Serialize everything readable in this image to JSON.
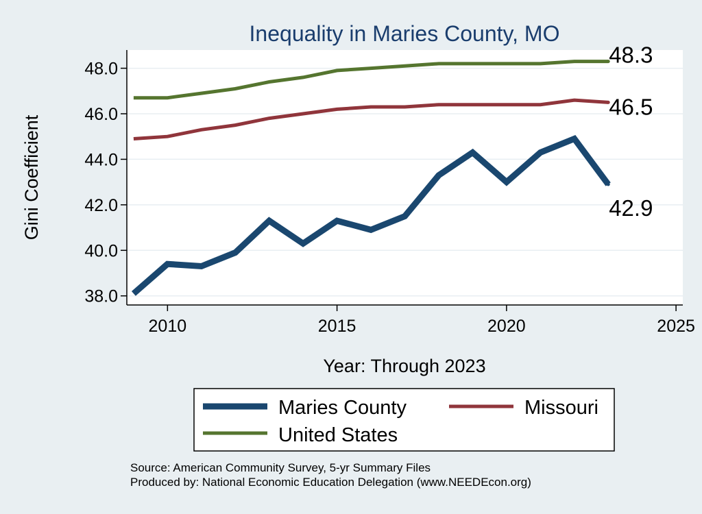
{
  "chart_data": {
    "type": "line",
    "title": "Inequality in Maries County, MO",
    "xlabel": "Year: Through 2023",
    "ylabel": "Gini Coefficient",
    "xlim": [
      2008.8,
      2025.2
    ],
    "ylim": [
      37.6,
      48.8
    ],
    "x_ticks": [
      2010,
      2015,
      2020,
      2025
    ],
    "y_ticks": [
      38,
      40,
      42,
      44,
      46,
      48
    ],
    "y_tick_labels": [
      "38.0",
      "40.0",
      "42.0",
      "44.0",
      "46.0",
      "48.0"
    ],
    "x": [
      2009,
      2010,
      2011,
      2012,
      2013,
      2014,
      2015,
      2016,
      2017,
      2018,
      2019,
      2020,
      2021,
      2022,
      2023
    ],
    "series": [
      {
        "name": "Maries County",
        "color": "#1a476f",
        "values": [
          38.1,
          39.4,
          39.3,
          39.9,
          41.3,
          40.3,
          41.3,
          40.9,
          41.5,
          43.3,
          44.3,
          43.0,
          44.3,
          44.9,
          42.9
        ],
        "end_label": "42.9"
      },
      {
        "name": "Missouri",
        "color": "#90353b",
        "values": [
          44.9,
          45.0,
          45.3,
          45.5,
          45.8,
          46.0,
          46.2,
          46.3,
          46.3,
          46.4,
          46.4,
          46.4,
          46.4,
          46.6,
          46.5
        ],
        "end_label": "46.5"
      },
      {
        "name": "United States",
        "color": "#55752f",
        "values": [
          46.7,
          46.7,
          46.9,
          47.1,
          47.4,
          47.6,
          47.9,
          48.0,
          48.1,
          48.2,
          48.2,
          48.2,
          48.2,
          48.3,
          48.3
        ],
        "end_label": "48.3"
      }
    ],
    "legend": {
      "position": "bottom",
      "items": [
        "Maries County",
        "Missouri",
        "United States"
      ]
    },
    "grid": true
  },
  "footer": {
    "source": "Source: American Community Survey, 5-yr Summary Files",
    "produced_by": "Produced by: National Economic Education Delegation (www.NEEDEcon.org)"
  }
}
